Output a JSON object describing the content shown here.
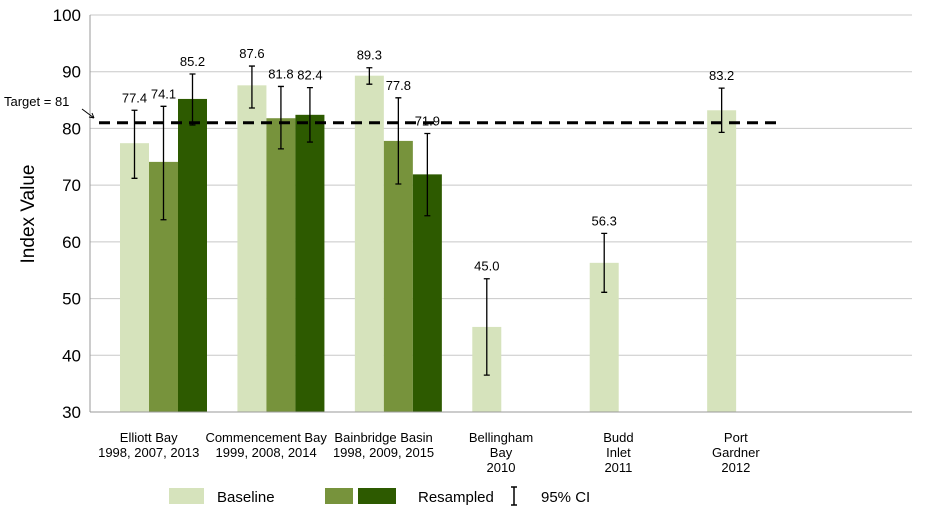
{
  "chart_data": {
    "type": "bar",
    "ylabel": "Index Value",
    "ylim": [
      30,
      100
    ],
    "yticks": [
      30,
      40,
      50,
      60,
      70,
      80,
      90,
      100
    ],
    "grid": true,
    "target": {
      "label": "Target  = 81",
      "value": 81
    },
    "categories": [
      {
        "lines": [
          "Elliott Bay",
          "1998, 2007, 2013"
        ]
      },
      {
        "lines": [
          "Commencement Bay",
          "1999, 2008, 2014"
        ]
      },
      {
        "lines": [
          "Bainbridge  Basin",
          "1998, 2009, 2015"
        ]
      },
      {
        "lines": [
          "Bellingham",
          "Bay",
          "2010"
        ]
      },
      {
        "lines": [
          "Budd",
          "Inlet",
          "2011"
        ]
      },
      {
        "lines": [
          "Port",
          "Gardner",
          "2012"
        ]
      }
    ],
    "bars": [
      {
        "cat": 0,
        "slot": 0,
        "value": 77.4,
        "label": "77.4",
        "ci": [
          71.2,
          83.2
        ]
      },
      {
        "cat": 0,
        "slot": 1,
        "value": 74.1,
        "label": "74.1",
        "ci": [
          63.9,
          83.9
        ]
      },
      {
        "cat": 0,
        "slot": 2,
        "value": 85.2,
        "label": "85.2",
        "ci": [
          80.6,
          89.6
        ]
      },
      {
        "cat": 1,
        "slot": 0,
        "value": 87.6,
        "label": "87.6",
        "ci": [
          83.6,
          91.0
        ]
      },
      {
        "cat": 1,
        "slot": 1,
        "value": 81.8,
        "label": "81.8",
        "ci": [
          76.4,
          87.4
        ]
      },
      {
        "cat": 1,
        "slot": 2,
        "value": 82.4,
        "label": "82.4",
        "ci": [
          77.6,
          87.2
        ]
      },
      {
        "cat": 2,
        "slot": 0,
        "value": 89.3,
        "label": "89.3",
        "ci": [
          87.8,
          90.7
        ]
      },
      {
        "cat": 2,
        "slot": 1,
        "value": 77.8,
        "label": "77.8",
        "ci": [
          70.2,
          85.4
        ]
      },
      {
        "cat": 2,
        "slot": 2,
        "value": 71.9,
        "label": "71.9",
        "ci": [
          64.6,
          79.1
        ]
      },
      {
        "cat": 3,
        "slot": 0,
        "value": 45.0,
        "label": "45.0",
        "ci": [
          36.5,
          53.5
        ]
      },
      {
        "cat": 4,
        "slot": 0,
        "value": 56.3,
        "label": "56.3",
        "ci": [
          51.1,
          61.5
        ]
      },
      {
        "cat": 5,
        "slot": 0,
        "value": 83.2,
        "label": "83.2",
        "ci": [
          79.3,
          87.1
        ]
      }
    ],
    "colors": [
      "#d6e3bc",
      "#77933c",
      "#2d5a00"
    ],
    "legend": {
      "position": "bottom",
      "baseline": "Baseline",
      "resampled": "Resampled",
      "ci": "95% CI"
    }
  }
}
